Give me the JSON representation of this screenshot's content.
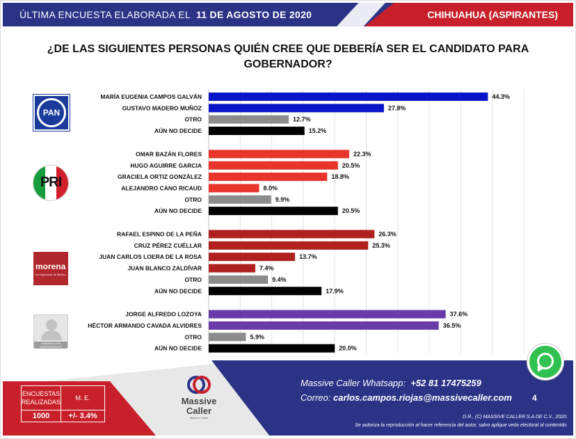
{
  "header": {
    "prefix": "ÚLTIMA ENCUESTA ELABORADA EL",
    "date": "11 DE AGOSTO DE 2020",
    "region": "CHIHUAHUA (ASPIRANTES)"
  },
  "question": "¿DE LAS SIGUIENTES PERSONAS QUIÉN CREE QUE DEBERÍA SER EL CANDIDATO PARA GOBERNADOR?",
  "logos": {
    "pan": "PAN",
    "pri": "PRI",
    "morena": "morena",
    "morena_sub": "La esperanza de México",
    "independent": "CANDIDATURA INDEPENDIENTE"
  },
  "chart_data": {
    "type": "bar",
    "orientation": "horizontal",
    "xlim": [
      0,
      50
    ],
    "grid": true,
    "groups": [
      {
        "party": "PAN",
        "color": "#0a14c8",
        "items": [
          {
            "label": "MARÍA EUGENIA CAMPOS GALVÁN",
            "value": 44.3,
            "display": "44.3%",
            "color": "#0a14c8"
          },
          {
            "label": "GUSTAVO MADERO MUÑOZ",
            "value": 27.8,
            "display": "27.8%",
            "color": "#0a14c8"
          },
          {
            "label": "OTRO",
            "value": 12.7,
            "display": "12.7%",
            "color": "#8c8c8c"
          },
          {
            "label": "AÚN NO DECIDE",
            "value": 15.2,
            "display": "15.2%",
            "color": "#000000"
          }
        ]
      },
      {
        "party": "PRI",
        "color": "#e8342b",
        "items": [
          {
            "label": "OMAR BAZÁN FLORES",
            "value": 22.3,
            "display": "22.3%",
            "color": "#e8342b"
          },
          {
            "label": "HUGO AGUIRRE GARCIA",
            "value": 20.5,
            "display": "20.5%",
            "color": "#e8342b"
          },
          {
            "label": "GRACIELA ORTIZ GONZÁLEZ",
            "value": 18.8,
            "display": "18.8%",
            "color": "#e8342b"
          },
          {
            "label": "ALEJANDRO CANO RICAUD",
            "value": 8.0,
            "display": "8.0%",
            "color": "#e8342b"
          },
          {
            "label": "OTRO",
            "value": 9.9,
            "display": "9.9%",
            "color": "#8c8c8c"
          },
          {
            "label": "AÚN NO DECIDE",
            "value": 20.5,
            "display": "20.5%",
            "color": "#000000"
          }
        ]
      },
      {
        "party": "MORENA",
        "color": "#b0201e",
        "items": [
          {
            "label": "RAFAEL ESPINO DE LA PEÑA",
            "value": 26.3,
            "display": "26.3%",
            "color": "#b0201e"
          },
          {
            "label": "CRUZ PÉREZ CUÉLLAR",
            "value": 25.3,
            "display": "25.3%",
            "color": "#b0201e"
          },
          {
            "label": "JUAN CARLOS LOERA DE LA ROSA",
            "value": 13.7,
            "display": "13.7%",
            "color": "#b0201e"
          },
          {
            "label": "JUAN BLANCO ZALDÍVAR",
            "value": 7.4,
            "display": "7.4%",
            "color": "#b0201e"
          },
          {
            "label": "OTRO",
            "value": 9.4,
            "display": "9.4%",
            "color": "#8c8c8c"
          },
          {
            "label": "AÚN NO DECIDE",
            "value": 17.9,
            "display": "17.9%",
            "color": "#000000"
          }
        ]
      },
      {
        "party": "INDEPENDIENTE",
        "color": "#6a3aa8",
        "items": [
          {
            "label": "JORGE ALFREDO LOZOYA",
            "value": 37.6,
            "display": "37.6%",
            "color": "#6a3aa8"
          },
          {
            "label": "HÉCTOR ARMANDO CAVADA ALVIDRES",
            "value": 36.5,
            "display": "36.5%",
            "color": "#6a3aa8"
          },
          {
            "label": "OTRO",
            "value": 5.9,
            "display": "5.9%",
            "color": "#8c8c8c"
          },
          {
            "label": "AÚN NO DECIDE",
            "value": 20.0,
            "display": "20.0%",
            "color": "#000000"
          }
        ]
      }
    ]
  },
  "footer": {
    "table": {
      "col1_header": "ENCUESTAS REALIZADAS",
      "col2_header": "M. E.",
      "col1_value": "1000",
      "col2_value": "+/- 3.4%"
    },
    "brand": "Massive Caller",
    "brand_tag": "Massive Caller",
    "whatsapp_label": "Massive Caller Whatsapp:",
    "whatsapp_number": "+52 81 17475259",
    "email_label": "Correo:",
    "email": "carlos.campos.riojas@massivecaller.com",
    "page": "4",
    "copyright": "D.R., (C) MASSIVE CALLER S.A DE C.V., 2020.",
    "notice": "Se autoriza la reproducción al hacer referencia del autor, salvo aplique veda electoral al contenido."
  },
  "colors": {
    "navy": "#2a3386",
    "red": "#c8202a",
    "whatsapp": "#30c150"
  }
}
